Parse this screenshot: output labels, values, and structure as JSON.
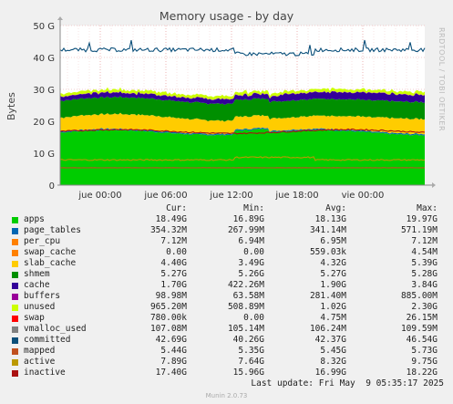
{
  "chart_data": {
    "type": "area",
    "title": "Memory usage - by day",
    "ylabel": "Bytes",
    "watermark": "RRDTOOL / TOBI OETIKER",
    "ylim": [
      0,
      50
    ],
    "yticks": [
      "0",
      "10 G",
      "20 G",
      "30 G",
      "40 G",
      "50 G"
    ],
    "xticks": [
      "jue 00:00",
      "jue 06:00",
      "jue 12:00",
      "jue 18:00",
      "vie 00:00"
    ],
    "grid": true,
    "stack_approx": [
      {
        "name": "apps",
        "color": "#00cc00",
        "value_G": 16.0
      },
      {
        "name": "page_tables",
        "color": "#0066b3",
        "value_G": 0.35
      },
      {
        "name": "per_cpu",
        "color": "#ff8000",
        "value_G": 0.01
      },
      {
        "name": "swap_cache",
        "color": "#ffcc00",
        "value_G": 0.0
      },
      {
        "name": "slab_cache",
        "color": "#ffcc00",
        "value_G": 4.4
      },
      {
        "name": "shmem",
        "color": "#008f00",
        "value_G": 5.27
      },
      {
        "name": "cache",
        "color": "#330099",
        "value_G": 2.0
      },
      {
        "name": "buffers",
        "color": "#990099",
        "value_G": 0.1
      },
      {
        "name": "unused",
        "color": "#ccff00",
        "value_G": 0.97
      }
    ],
    "lines": [
      {
        "name": "committed",
        "color": "#0b4f7a",
        "value_G": 42.5
      },
      {
        "name": "mapped",
        "color": "#c05020",
        "value_G": 5.45
      },
      {
        "name": "active",
        "color": "#bb9900",
        "value_G": 7.9
      },
      {
        "name": "inactive",
        "color": "#aa1111",
        "value_G": 17.0
      }
    ]
  },
  "legend": {
    "headers": [
      "Cur:",
      "Min:",
      "Avg:",
      "Max:"
    ],
    "rows": [
      {
        "name": "apps",
        "color": "#00cc00",
        "cur": "18.49G",
        "min": "16.89G",
        "avg": "18.13G",
        "max": "19.97G"
      },
      {
        "name": "page_tables",
        "color": "#0066b3",
        "cur": "354.32M",
        "min": "267.99M",
        "avg": "341.14M",
        "max": "571.19M"
      },
      {
        "name": "per_cpu",
        "color": "#ff8000",
        "cur": "7.12M",
        "min": "6.94M",
        "avg": "6.95M",
        "max": "7.12M"
      },
      {
        "name": "swap_cache",
        "color": "#ff8000",
        "cur": "0.00",
        "min": "0.00",
        "avg": "559.03k",
        "max": "4.54M"
      },
      {
        "name": "slab_cache",
        "color": "#ffcc00",
        "cur": "4.40G",
        "min": "3.49G",
        "avg": "4.32G",
        "max": "5.39G"
      },
      {
        "name": "shmem",
        "color": "#008f00",
        "cur": "5.27G",
        "min": "5.26G",
        "avg": "5.27G",
        "max": "5.28G"
      },
      {
        "name": "cache",
        "color": "#330099",
        "cur": "1.70G",
        "min": "422.26M",
        "avg": "1.90G",
        "max": "3.84G"
      },
      {
        "name": "buffers",
        "color": "#990099",
        "cur": "98.98M",
        "min": "63.58M",
        "avg": "281.40M",
        "max": "885.00M"
      },
      {
        "name": "unused",
        "color": "#ccff00",
        "cur": "965.20M",
        "min": "508.89M",
        "avg": "1.02G",
        "max": "2.30G"
      },
      {
        "name": "swap",
        "color": "#ff0000",
        "cur": "780.00k",
        "min": "0.00",
        "avg": "4.75M",
        "max": "26.15M"
      },
      {
        "name": "vmalloc_used",
        "color": "#808080",
        "cur": "107.08M",
        "min": "105.14M",
        "avg": "106.24M",
        "max": "109.59M"
      },
      {
        "name": "committed",
        "color": "#0b4f7a",
        "cur": "42.69G",
        "min": "40.26G",
        "avg": "42.37G",
        "max": "46.54G"
      },
      {
        "name": "mapped",
        "color": "#c05020",
        "cur": "5.44G",
        "min": "5.35G",
        "avg": "5.45G",
        "max": "5.73G"
      },
      {
        "name": "active",
        "color": "#bb9900",
        "cur": "7.89G",
        "min": "7.64G",
        "avg": "8.32G",
        "max": "9.75G"
      },
      {
        "name": "inactive",
        "color": "#aa1111",
        "cur": "17.40G",
        "min": "15.96G",
        "avg": "16.99G",
        "max": "18.22G"
      }
    ]
  },
  "footer": {
    "last_update": "Last update: Fri May  9 05:35:17 2025",
    "munin": "Munin 2.0.73"
  }
}
